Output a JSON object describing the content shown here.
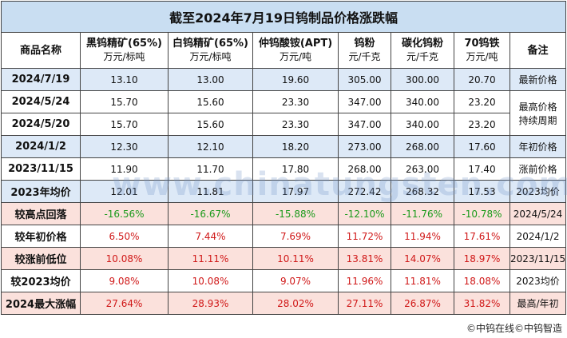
{
  "title": "截至2024年7月19日钨制品价格涨跌幅",
  "watermark": "www.chinatungsten.com",
  "footer": "©中钨在线©中钨智造",
  "table": {
    "columns": [
      {
        "name": "商品名称"
      },
      {
        "name": "黑钨精矿(65%)",
        "unit": "万元/标吨"
      },
      {
        "name": "白钨精矿(65%)",
        "unit": "万元/标吨"
      },
      {
        "name": "仲钨酸铵(APT)",
        "unit": "万元/吨"
      },
      {
        "name": "钨粉",
        "unit": "元/千克"
      },
      {
        "name": "碳化钨粉",
        "unit": "元/千克"
      },
      {
        "name": "70钨铁",
        "unit": "万元/吨"
      },
      {
        "name": "备注"
      }
    ],
    "rows": [
      {
        "label": "2024/7/19",
        "cells": [
          "13.10",
          "13.00",
          "19.60",
          "305.00",
          "300.00",
          "20.70"
        ],
        "note": [
          "最新价格"
        ]
      },
      {
        "label": "2024/5/24",
        "cells": [
          "15.70",
          "15.60",
          "23.30",
          "347.00",
          "340.00",
          "23.20"
        ],
        "note": [
          "最高价格",
          "持续周期"
        ]
      },
      {
        "label": "2024/5/20",
        "cells": [
          "15.70",
          "15.60",
          "23.30",
          "347.00",
          "340.00",
          "23.20"
        ]
      },
      {
        "label": "2024/1/2",
        "cells": [
          "12.30",
          "12.10",
          "18.20",
          "273.00",
          "268.00",
          "17.60"
        ],
        "note": [
          "年初价格"
        ]
      },
      {
        "label": "2023/11/15",
        "cells": [
          "11.90",
          "11.70",
          "17.80",
          "268.00",
          "263.00",
          "17.40"
        ],
        "note": [
          "涨前价格"
        ]
      },
      {
        "label": "2023年均价",
        "cells": [
          "12.01",
          "11.81",
          "17.97",
          "272.42",
          "268.32",
          "17.53"
        ],
        "note": [
          "2023均价"
        ]
      },
      {
        "label": "较高点回落",
        "cells": [
          "-16.56%",
          "-16.67%",
          "-15.88%",
          "-12.10%",
          "-11.76%",
          "-10.78%"
        ],
        "note": [
          "2024/5/24"
        ]
      },
      {
        "label": "较年初价格",
        "cells": [
          "6.50%",
          "7.44%",
          "7.69%",
          "11.72%",
          "11.94%",
          "17.61%"
        ],
        "note": [
          "2024/1/2"
        ]
      },
      {
        "label": "较涨前低位",
        "cells": [
          "10.08%",
          "11.11%",
          "10.11%",
          "13.81%",
          "14.07%",
          "18.97%"
        ],
        "note": [
          "2023/11/15"
        ]
      },
      {
        "label": "较2023均价",
        "cells": [
          "9.08%",
          "10.08%",
          "9.07%",
          "11.96%",
          "11.81%",
          "18.08%"
        ],
        "note": [
          "2023均价"
        ]
      },
      {
        "label": "2024最大涨幅",
        "cells": [
          "27.64%",
          "28.93%",
          "28.02%",
          "27.11%",
          "26.87%",
          "31.82%"
        ],
        "note": [
          "最高/年初"
        ]
      }
    ]
  }
}
